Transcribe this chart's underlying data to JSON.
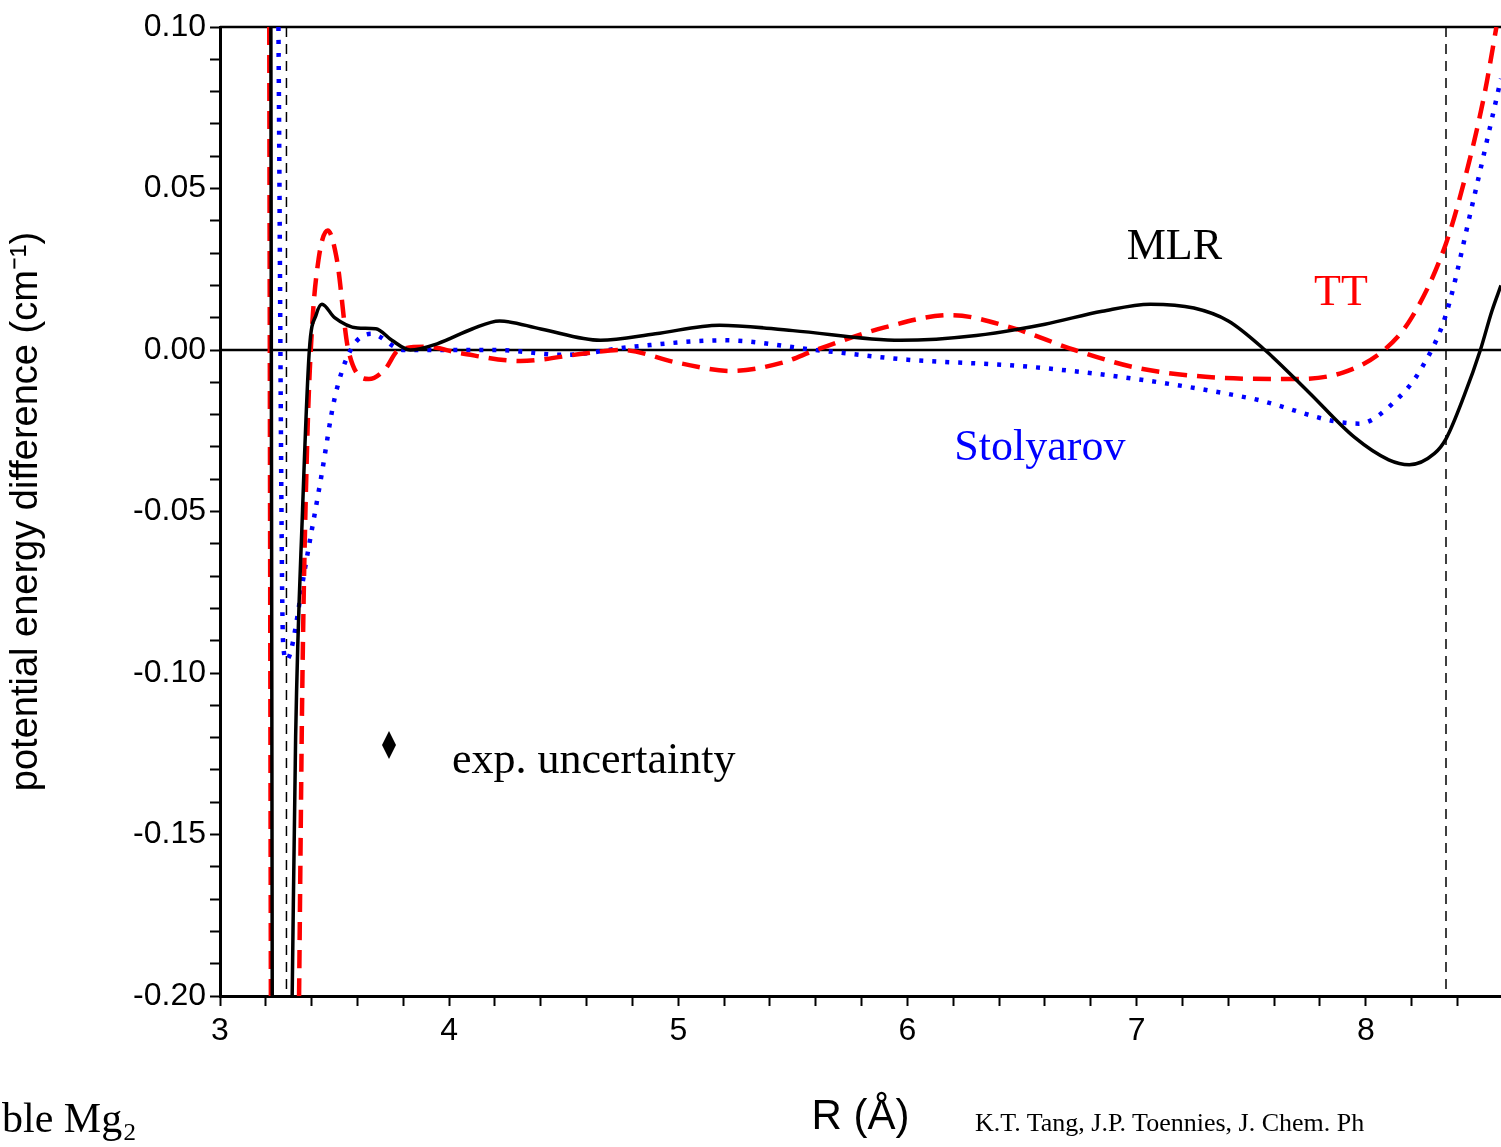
{
  "chart_data": {
    "type": "line",
    "xlabel": "R (Å)",
    "ylabel": "potential energy difference (cm⁻¹)",
    "xlim": [
      3,
      8.59
    ],
    "ylim": [
      -0.2,
      0.1
    ],
    "xticks": [
      3,
      {
        "value": 3.2,
        "label": null
      },
      {
        "value": 3.4,
        "label": null
      },
      {
        "value": 3.6,
        "label": null
      },
      {
        "value": 3.8,
        "label": null
      },
      4,
      {
        "value": 4.2,
        "label": null
      },
      {
        "value": 4.4,
        "label": null
      },
      {
        "value": 4.6,
        "label": null
      },
      {
        "value": 4.8,
        "label": null
      },
      5,
      {
        "value": 5.2,
        "label": null
      },
      {
        "value": 5.4,
        "label": null
      },
      {
        "value": 5.6,
        "label": null
      },
      {
        "value": 5.8,
        "label": null
      },
      6,
      {
        "value": 6.2,
        "label": null
      },
      {
        "value": 6.4,
        "label": null
      },
      {
        "value": 6.6,
        "label": null
      },
      {
        "value": 6.8,
        "label": null
      },
      7,
      {
        "value": 7.2,
        "label": null
      },
      {
        "value": 7.4,
        "label": null
      },
      {
        "value": 7.6,
        "label": null
      },
      {
        "value": 7.8,
        "label": null
      },
      8,
      {
        "value": 8.2,
        "label": null
      },
      {
        "value": 8.4,
        "label": null
      }
    ],
    "yticks": [
      {
        "value": -0.2,
        "label": "-0.20"
      },
      {
        "value": -0.19,
        "label": null
      },
      {
        "value": -0.18,
        "label": null
      },
      {
        "value": -0.17,
        "label": null
      },
      {
        "value": -0.16,
        "label": null
      },
      {
        "value": -0.15,
        "label": "-0.15"
      },
      {
        "value": -0.14,
        "label": null
      },
      {
        "value": -0.13,
        "label": null
      },
      {
        "value": -0.12,
        "label": null
      },
      {
        "value": -0.11,
        "label": null
      },
      {
        "value": -0.1,
        "label": "-0.10"
      },
      {
        "value": -0.09,
        "label": null
      },
      {
        "value": -0.08,
        "label": null
      },
      {
        "value": -0.07,
        "label": null
      },
      {
        "value": -0.06,
        "label": null
      },
      {
        "value": -0.05,
        "label": "-0.05"
      },
      {
        "value": -0.04,
        "label": null
      },
      {
        "value": -0.03,
        "label": null
      },
      {
        "value": -0.02,
        "label": null
      },
      {
        "value": -0.01,
        "label": null
      },
      {
        "value": 0,
        "label": "0.00"
      },
      {
        "value": 0.01,
        "label": null
      },
      {
        "value": 0.02,
        "label": null
      },
      {
        "value": 0.03,
        "label": null
      },
      {
        "value": 0.04,
        "label": null
      },
      {
        "value": 0.05,
        "label": "0.05"
      },
      {
        "value": 0.06,
        "label": null
      },
      {
        "value": 0.07,
        "label": null
      },
      {
        "value": 0.08,
        "label": null
      },
      {
        "value": 0.09,
        "label": null
      },
      {
        "value": 0.1,
        "label": "0.10"
      }
    ],
    "grid": false,
    "legend": false,
    "marker": "none",
    "series": [
      {
        "name": "MLR",
        "color": "#000000",
        "line_style": "solid",
        "x": [
          3.222,
          3.228,
          3.27,
          3.315,
          3.33,
          3.36,
          3.39,
          3.42,
          3.445,
          3.5,
          3.6,
          3.68,
          3.75,
          3.83,
          3.95,
          4.1,
          4.22,
          4.4,
          4.66,
          4.9,
          5.18,
          5.5,
          5.97,
          6.3,
          6.6,
          6.85,
          7.06,
          7.25,
          7.4,
          7.56,
          7.75,
          7.95,
          8.1,
          8.19,
          8.3,
          8.35,
          8.43,
          8.5,
          8.55,
          8.59
        ],
        "values": [
          0.1,
          -0.2,
          null,
          -0.2,
          -0.12,
          -0.05,
          0.0,
          0.011,
          0.0142,
          0.01,
          0.0068,
          0.0066,
          0.003,
          0.0,
          0.002,
          0.0065,
          0.009,
          0.0065,
          0.003,
          0.005,
          0.0077,
          0.006,
          0.003,
          0.0045,
          0.008,
          0.012,
          0.0142,
          0.013,
          0.009,
          0.0,
          -0.013,
          -0.027,
          -0.034,
          -0.0355,
          -0.032,
          -0.0275,
          -0.014,
          0.0,
          0.012,
          0.02
        ]
      },
      {
        "name": "TT",
        "color": "#ff0000",
        "line_style": "dashed",
        "x": [
          3.215,
          3.222,
          3.28,
          3.345,
          3.36,
          3.38,
          3.4,
          3.43,
          3.47,
          3.51,
          3.56,
          3.65,
          3.72,
          3.78,
          3.9,
          4.05,
          4.31,
          4.6,
          4.75,
          5.0,
          5.23,
          5.45,
          5.6,
          5.9,
          6.19,
          6.45,
          6.73,
          7.0,
          7.3,
          7.67,
          7.9,
          8.08,
          8.2,
          8.35,
          8.45,
          8.52,
          8.57
        ],
        "values": [
          0.1,
          -0.2,
          null,
          -0.2,
          -0.1,
          -0.03,
          0.005,
          0.028,
          0.037,
          0.028,
          0.0,
          -0.009,
          -0.006,
          0.0,
          0.001,
          -0.001,
          -0.0034,
          -0.001,
          0.0,
          -0.004,
          -0.0065,
          -0.004,
          0.0,
          0.007,
          0.0108,
          0.007,
          0.0,
          -0.0055,
          -0.0083,
          -0.009,
          -0.007,
          0.0,
          0.01,
          0.033,
          0.058,
          0.08,
          0.1
        ]
      },
      {
        "name": "Stolyarov",
        "color": "#0000ff",
        "line_style": "dotted",
        "x": [
          3.255,
          3.275,
          3.29,
          3.31,
          3.37,
          3.44,
          3.5,
          3.57,
          3.66,
          3.8,
          4.0,
          4.2,
          4.5,
          4.8,
          5.2,
          5.6,
          6.0,
          6.5,
          7.0,
          7.5,
          7.97,
          8.14,
          8.24,
          8.35,
          8.46,
          8.59
        ],
        "values": [
          0.1,
          -0.09,
          -0.096,
          -0.093,
          -0.068,
          -0.04,
          -0.015,
          0.0,
          0.005,
          0.0,
          0.0,
          0.0,
          -0.0015,
          0.001,
          0.003,
          0.0,
          -0.003,
          -0.005,
          -0.009,
          -0.015,
          -0.0228,
          -0.015,
          -0.006,
          0.011,
          0.0435,
          0.084
        ]
      }
    ],
    "ref_lines": [
      {
        "axis": "y",
        "value": 0,
        "color": "#000000",
        "line_style": "solid"
      },
      {
        "axis": "x",
        "value": 3.29,
        "color": "#000000",
        "line_style": "dashed"
      },
      {
        "axis": "x",
        "value": 8.35,
        "color": "#000000",
        "line_style": "dashed"
      }
    ],
    "annotations": [
      "exp. uncertainty",
      "ble Mg₂",
      "K.T. Tang, J.P. Toennies, J. Chem. Ph"
    ]
  }
}
